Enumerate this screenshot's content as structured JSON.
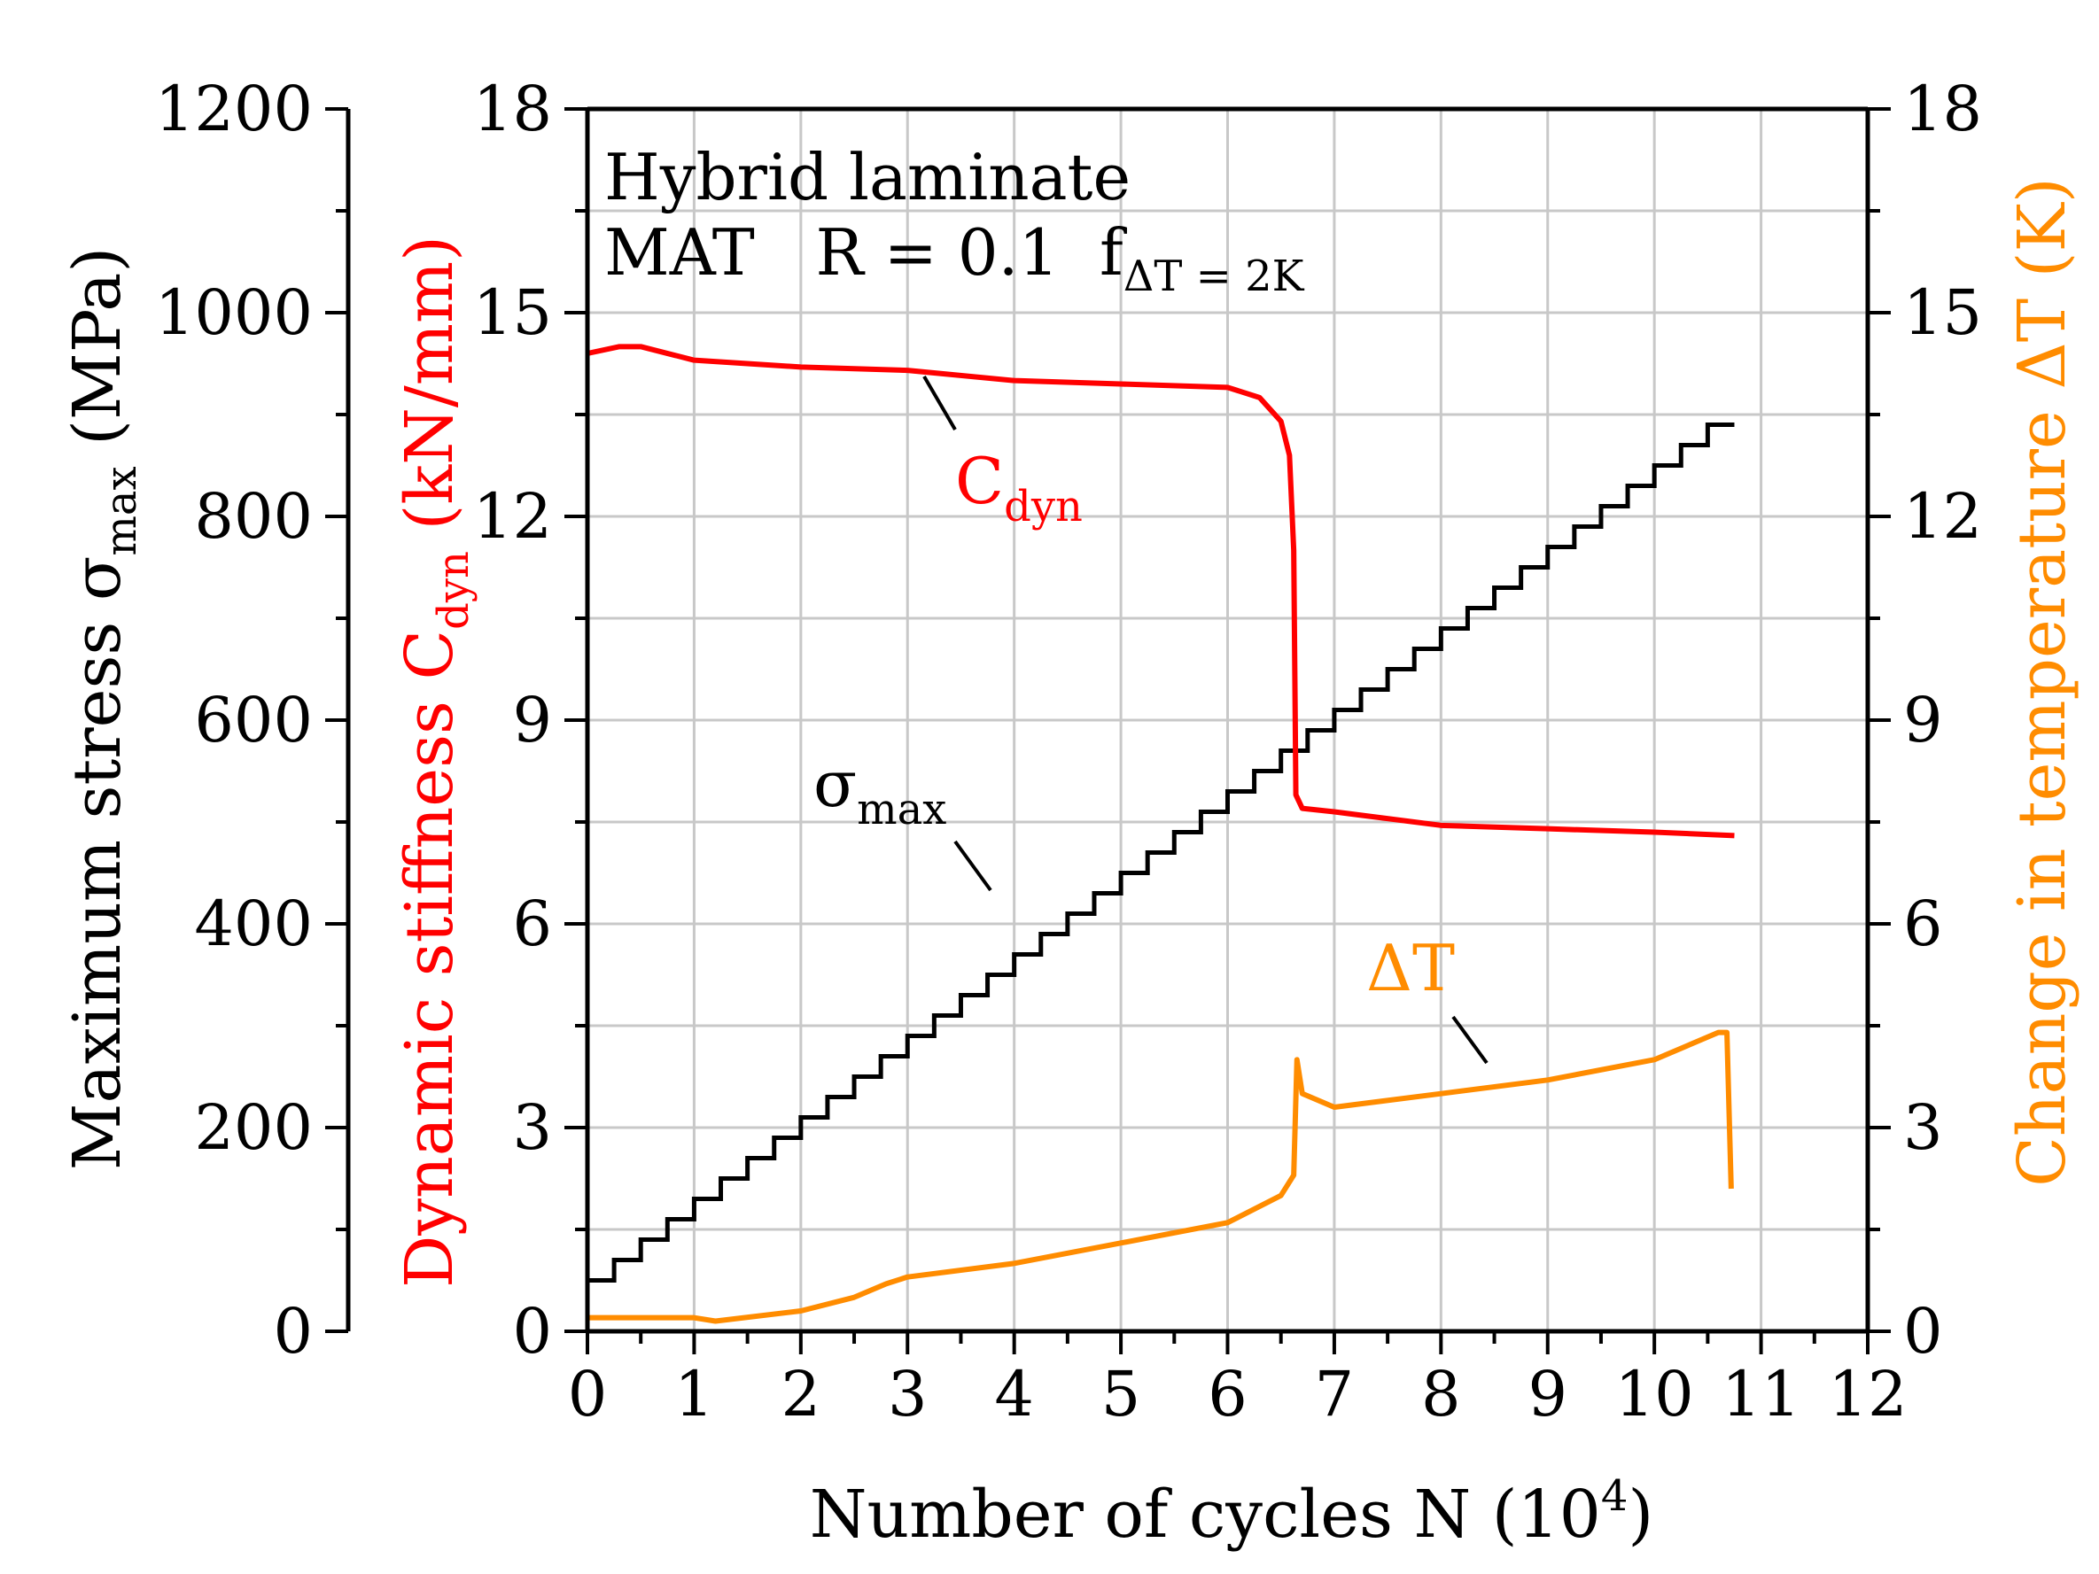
{
  "chart_data": {
    "type": "line",
    "title_lines": [
      "Hybrid laminate",
      "MAT   R = 0.1  f",
      "ΔT = 2K"
    ],
    "colors": {
      "stiffness": "#ff0000",
      "temperature": "#ff8c00",
      "stress": "#000000",
      "grid": "#c8c8c8"
    },
    "xaxis": {
      "label": "Number of cycles N (10",
      "label_sup": "4",
      "label_end": ")",
      "range": [
        0,
        12
      ],
      "ticks": [
        0,
        1,
        2,
        3,
        4,
        5,
        6,
        7,
        8,
        9,
        10,
        11,
        12
      ]
    },
    "left_stress_axis": {
      "label_main": "Maximum stress σ",
      "label_sub": "max",
      "label_end": " (MPa)",
      "range": [
        0,
        1200
      ],
      "ticks": [
        0,
        200,
        400,
        600,
        800,
        1000,
        1200
      ]
    },
    "left_stiffness_axis": {
      "label_main": "Dynamic stiffness C",
      "label_sub": "dyn",
      "label_end": " (kN/mm)",
      "range": [
        0,
        18
      ],
      "ticks": [
        0,
        3,
        6,
        9,
        12,
        15,
        18
      ]
    },
    "right_axis": {
      "label": "Change in temperature ΔT (K)",
      "range": [
        0,
        18
      ],
      "ticks": [
        0,
        3,
        6,
        9,
        12,
        15,
        18
      ]
    },
    "series": [
      {
        "name": "σmax",
        "axis": "stress",
        "kind": "staircase",
        "start_x": 0,
        "step_dx": 0.25,
        "start_y": 50,
        "step_dy": 20,
        "end_x": 10.75
      },
      {
        "name": "Cdyn",
        "axis": "stiffness",
        "kind": "line",
        "x": [
          0,
          0.3,
          0.5,
          1.0,
          2.0,
          3.0,
          4.0,
          5.0,
          6.0,
          6.3,
          6.5,
          6.58,
          6.62,
          6.64,
          6.7,
          7.0,
          8.0,
          9.0,
          10.0,
          10.75
        ],
        "y": [
          14.4,
          14.5,
          14.5,
          14.3,
          14.2,
          14.15,
          14.0,
          13.95,
          13.9,
          13.75,
          13.4,
          12.9,
          11.5,
          7.9,
          7.7,
          7.65,
          7.45,
          7.4,
          7.35,
          7.3
        ]
      },
      {
        "name": "ΔT",
        "axis": "temperature",
        "kind": "line",
        "x": [
          0,
          1.0,
          1.2,
          2.0,
          2.5,
          2.8,
          3.0,
          4.0,
          5.0,
          6.0,
          6.5,
          6.62,
          6.65,
          6.7,
          7.0,
          8.0,
          9.0,
          10.0,
          10.6,
          10.68,
          10.72
        ],
        "y": [
          0.2,
          0.2,
          0.15,
          0.3,
          0.5,
          0.7,
          0.8,
          1.0,
          1.3,
          1.6,
          2.0,
          2.3,
          4.0,
          3.5,
          3.3,
          3.5,
          3.7,
          4.0,
          4.4,
          4.4,
          2.1
        ]
      }
    ],
    "annotations": [
      {
        "series": "Cdyn",
        "text": "C",
        "sub": "dyn"
      },
      {
        "series": "σmax",
        "text": "σ",
        "sub": "max"
      },
      {
        "series": "ΔT",
        "text": "ΔT",
        "sub": ""
      }
    ]
  }
}
